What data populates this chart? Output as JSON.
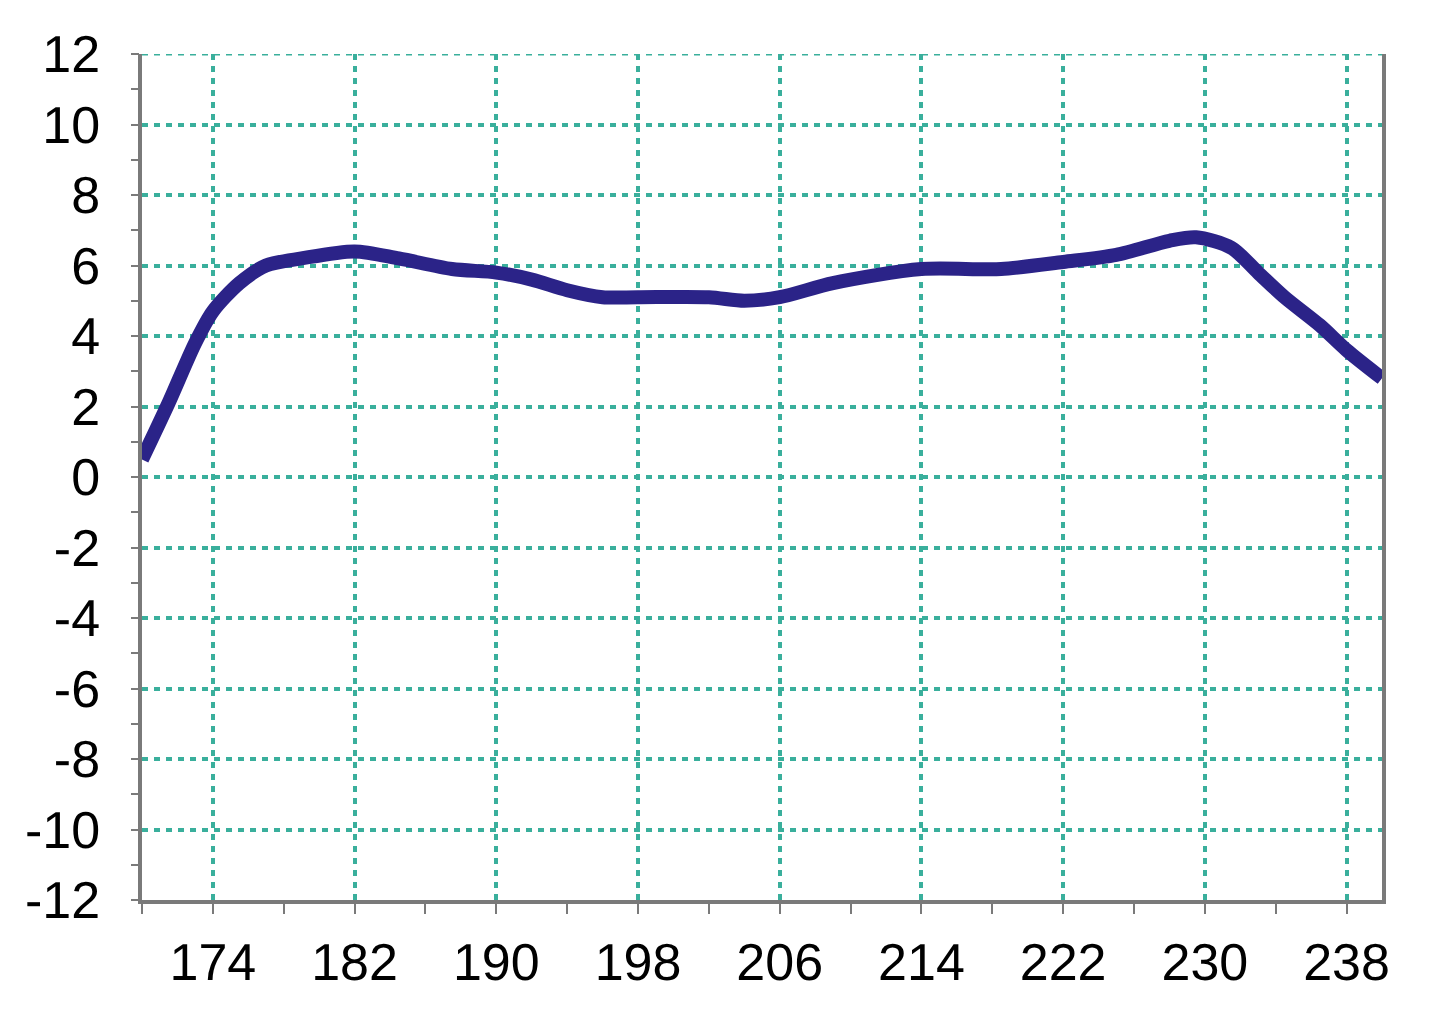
{
  "chart_data": {
    "type": "line",
    "x": [
      170,
      171.5,
      173,
      174,
      175.5,
      177,
      179,
      182,
      184.5,
      187.5,
      190,
      192,
      194,
      196,
      198,
      202,
      204,
      206,
      209,
      214,
      218.5,
      222,
      225,
      228,
      229.5,
      231.5,
      233,
      234.5,
      236.5,
      238,
      240
    ],
    "series": [
      {
        "color": "#2b2388",
        "values": [
          0.5,
          2.1,
          3.8,
          4.7,
          5.5,
          6.0,
          6.2,
          6.4,
          6.2,
          5.9,
          5.8,
          5.6,
          5.3,
          5.1,
          5.1,
          5.1,
          5.0,
          5.1,
          5.5,
          5.9,
          5.9,
          6.1,
          6.3,
          6.7,
          6.8,
          6.5,
          5.8,
          5.1,
          4.3,
          3.6,
          2.8
        ]
      }
    ],
    "xlim": [
      170,
      240
    ],
    "xticks": [
      {
        "value": 170,
        "label": null
      },
      174,
      {
        "value": 178,
        "label": null
      },
      182,
      {
        "value": 186,
        "label": null
      },
      190,
      {
        "value": 194,
        "label": null
      },
      198,
      {
        "value": 202,
        "label": null
      },
      206,
      {
        "value": 210,
        "label": null
      },
      214,
      {
        "value": 218,
        "label": null
      },
      222,
      {
        "value": 226,
        "label": null
      },
      230,
      {
        "value": 234,
        "label": null
      },
      238
    ],
    "ylim": [
      -12,
      12
    ],
    "yticks": [
      -12,
      {
        "value": -11,
        "label": null
      },
      -10,
      {
        "value": -9,
        "label": null
      },
      -8,
      {
        "value": -7,
        "label": null
      },
      -6,
      {
        "value": -5,
        "label": null
      },
      -4,
      {
        "value": -3,
        "label": null
      },
      -2,
      {
        "value": -1,
        "label": null
      },
      0,
      {
        "value": 1,
        "label": null
      },
      2,
      {
        "value": 3,
        "label": null
      },
      4,
      {
        "value": 5,
        "label": null
      },
      6,
      {
        "value": 7,
        "label": null
      },
      8,
      {
        "value": 9,
        "label": null
      },
      10,
      {
        "value": 11,
        "label": null
      },
      12
    ],
    "grid": true,
    "line_style": "solid"
  }
}
